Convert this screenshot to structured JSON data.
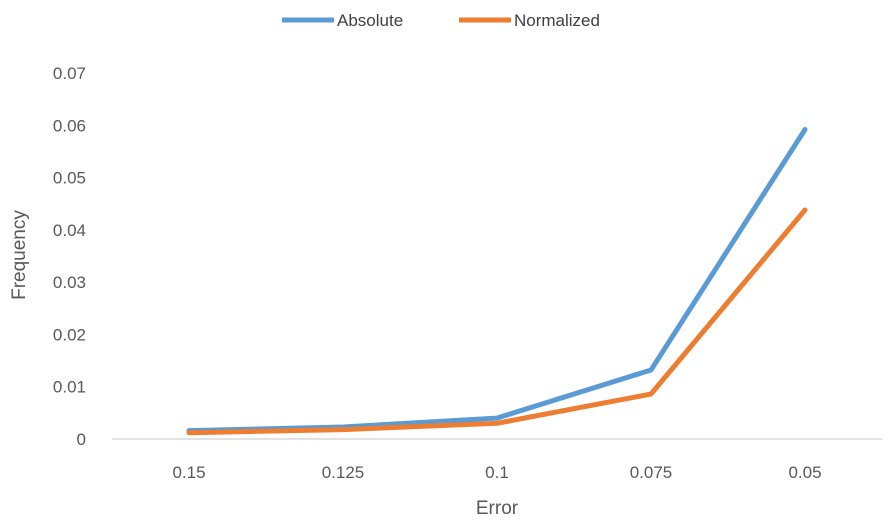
{
  "chart_data": {
    "type": "line",
    "categories": [
      "0.15",
      "0.125",
      "0.1",
      "0.075",
      "0.05"
    ],
    "series": [
      {
        "name": "Absolute",
        "color": "#5B9BD5",
        "values": [
          0.0016,
          0.0023,
          0.004,
          0.0132,
          0.0592
        ]
      },
      {
        "name": "Normalized",
        "color": "#ED7D31",
        "values": [
          0.0012,
          0.0018,
          0.003,
          0.0086,
          0.0438
        ]
      }
    ],
    "xlabel": "Error",
    "ylabel": "Frequency",
    "ylim": [
      0,
      0.07
    ],
    "yticks": [
      "0",
      "0.01",
      "0.02",
      "0.03",
      "0.04",
      "0.05",
      "0.06",
      "0.07"
    ],
    "grid": false,
    "legend": "top-center"
  }
}
